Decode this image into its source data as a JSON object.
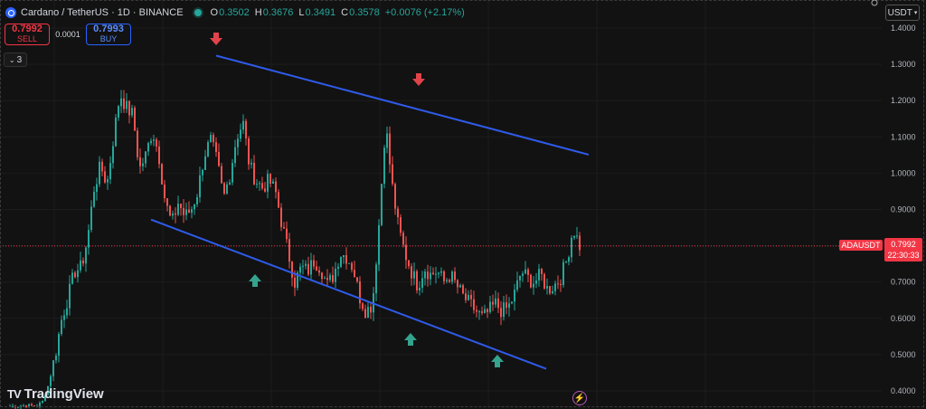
{
  "header": {
    "symbol": "Cardano / TetherUS · 1D · BINANCE",
    "open_label": "O",
    "open": "0.3502",
    "high_label": "H",
    "high": "0.3676",
    "low_label": "L",
    "low": "0.3491",
    "close_label": "C",
    "close": "0.3578",
    "change": "+0.0076 (+2.17%)"
  },
  "trade": {
    "sell_price": "0.7992",
    "sell_label": "SELL",
    "spread": "0.0001",
    "buy_price": "0.7993",
    "buy_label": "BUY"
  },
  "collapse": {
    "label": "3"
  },
  "currency": "USDT",
  "price_badge": {
    "symbol": "ADAUSDT",
    "price": "0.7992",
    "countdown": "22:30:33"
  },
  "branding": {
    "name": "TradingView"
  },
  "colors": {
    "up": "#26a69a",
    "down": "#ef5350",
    "channel": "#2f5bea",
    "arrow_down": "#e0434a",
    "arrow_up": "#35a38e",
    "background": "#121212"
  },
  "chart_data": {
    "type": "candlestick",
    "title": "Cardano / TetherUS · 1D · BINANCE",
    "y_axis": {
      "ticks": [
        0.4,
        0.5,
        0.6,
        0.7,
        0.8,
        0.9,
        1.0,
        1.1,
        1.2,
        1.3,
        1.4
      ],
      "range": [
        0.375,
        1.43
      ]
    },
    "current_price": 0.7992,
    "close_path": [
      0.3578,
      0.3578,
      0.36,
      0.36,
      0.3578,
      0.37,
      0.42,
      0.5,
      0.6,
      0.66,
      0.73,
      0.74,
      0.82,
      0.96,
      1.02,
      0.97,
      1.1,
      1.22,
      1.18,
      1.16,
      1.01,
      1.05,
      1.12,
      1.05,
      0.92,
      0.86,
      0.92,
      0.88,
      0.9,
      0.95,
      1.05,
      1.09,
      1.03,
      0.93,
      1.0,
      1.1,
      1.14,
      1.02,
      0.98,
      0.96,
      0.98,
      0.95,
      0.86,
      0.78,
      0.7,
      0.74,
      0.73,
      0.76,
      0.74,
      0.69,
      0.72,
      0.78,
      0.77,
      0.74,
      0.66,
      0.62,
      0.64,
      0.86,
      1.14,
      0.97,
      0.85,
      0.78,
      0.73,
      0.69,
      0.74,
      0.72,
      0.73,
      0.7,
      0.72,
      0.69,
      0.66,
      0.64,
      0.62,
      0.6,
      0.62,
      0.64,
      0.62,
      0.63,
      0.67,
      0.73,
      0.71,
      0.7,
      0.72,
      0.68,
      0.69,
      0.71,
      0.76,
      0.85,
      0.8
    ],
    "channel_upper": {
      "from": 1.324,
      "to": 1.051
    },
    "channel_lower": {
      "from": 0.872,
      "to": 0.461
    },
    "markers": [
      {
        "type": "arrow-down",
        "near": 1.32
      },
      {
        "type": "arrow-down",
        "near": 1.17
      },
      {
        "type": "arrow-up",
        "near": 0.76
      },
      {
        "type": "arrow-up",
        "near": 0.58
      },
      {
        "type": "arrow-up",
        "near": 0.51
      }
    ]
  }
}
